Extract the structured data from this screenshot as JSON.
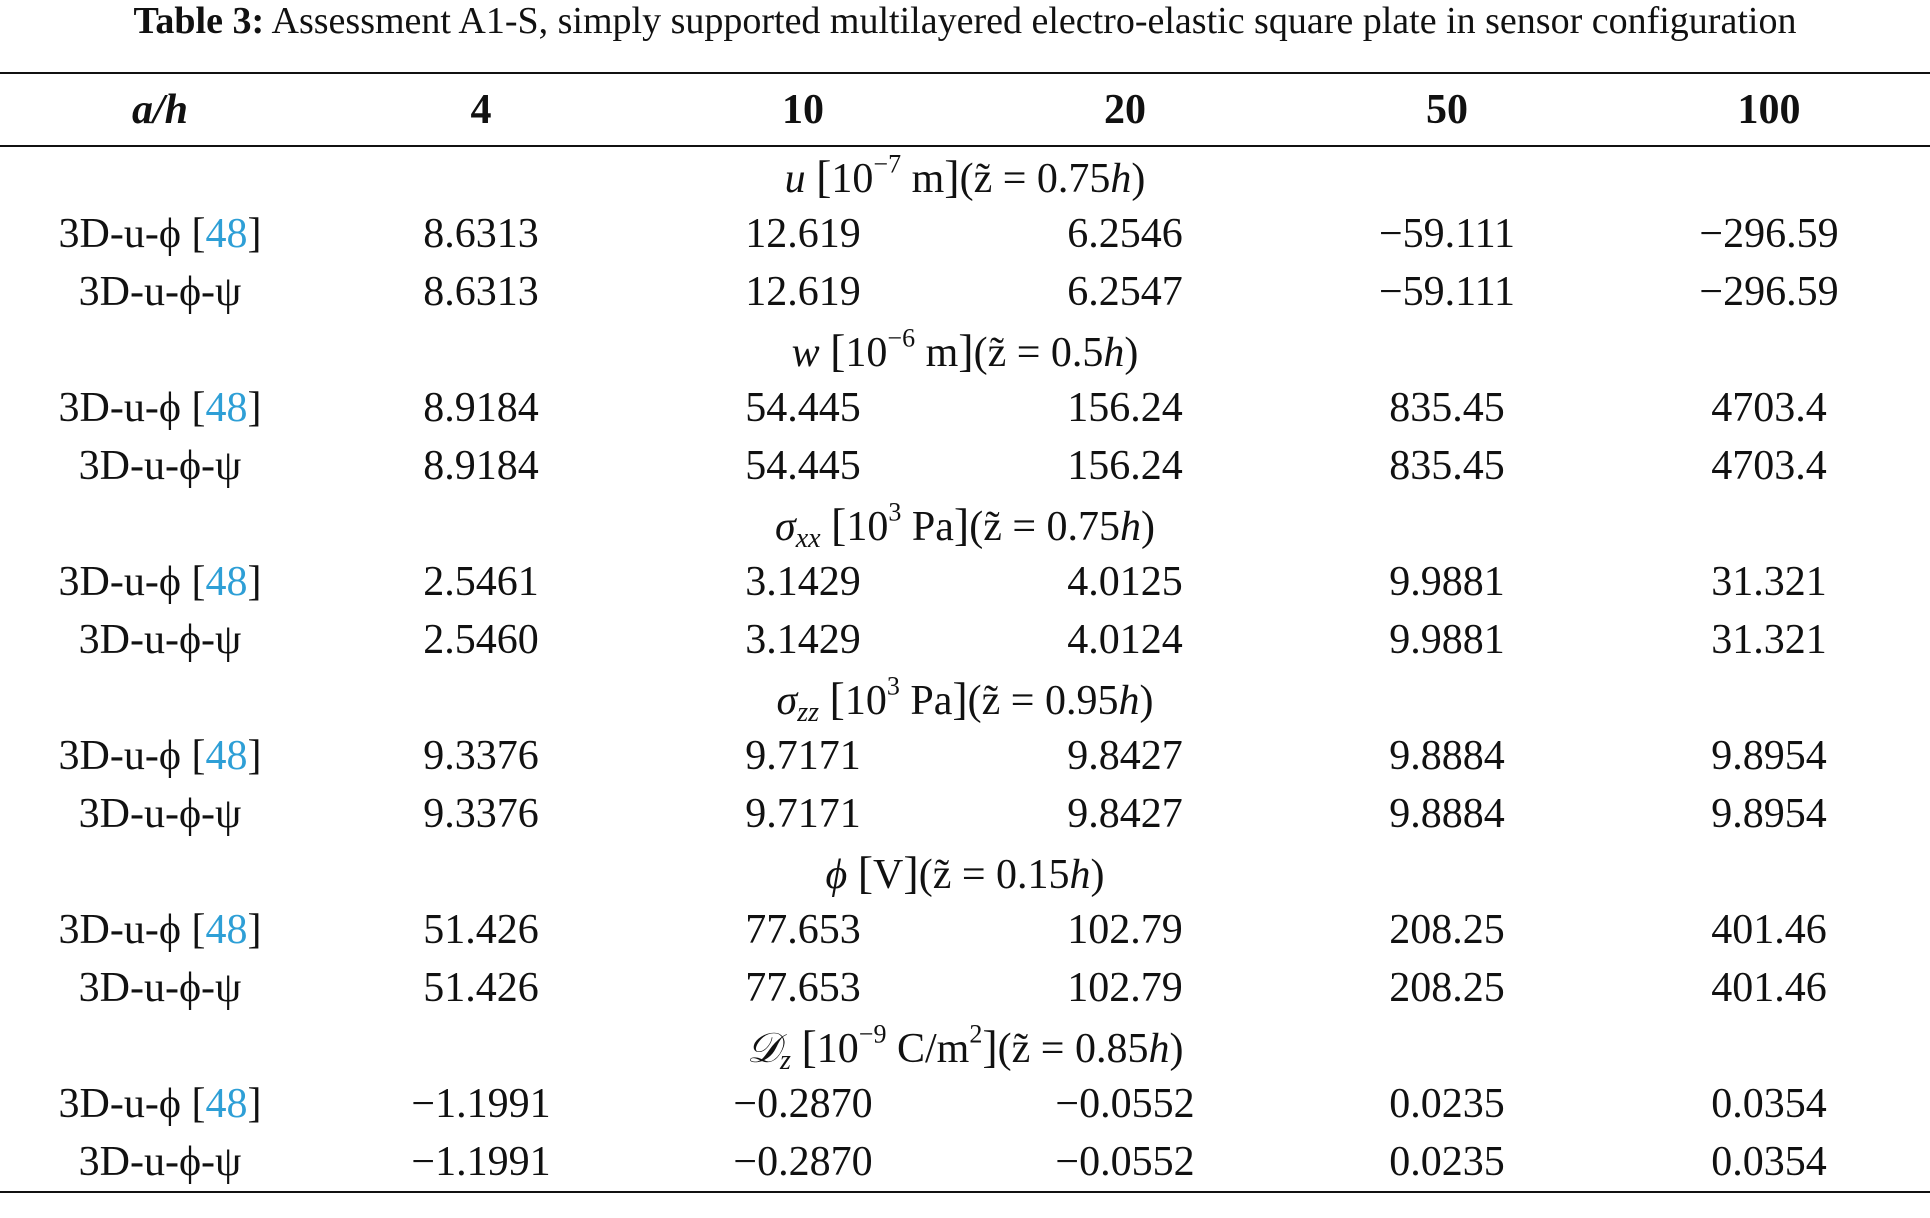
{
  "caption": {
    "label": "Table 3:",
    "text": " Assessment A1-S, simply supported multilayered electro-elastic square plate in sensor configuration"
  },
  "table": {
    "header": [
      "a/h",
      "4",
      "10",
      "20",
      "50",
      "100"
    ],
    "row_labels": {
      "ref_prefix": "3D-u-ϕ ",
      "ref_open": "[",
      "ref_num": "48",
      "ref_close": "]",
      "psi": "3D-u-ϕ-ψ"
    },
    "sections": [
      {
        "sym": "u",
        "sub": "",
        "unit_pre": "10",
        "unit_exp": "−7",
        "unit_post": " m",
        "loc": "(z̃ = 0.75",
        "loc_h": "h",
        "loc_end": ")",
        "rows": [
          [
            "8.6313",
            "12.619",
            "6.2546",
            "−59.111",
            "−296.59"
          ],
          [
            "8.6313",
            "12.619",
            "6.2547",
            "−59.111",
            "−296.59"
          ]
        ]
      },
      {
        "sym": "w",
        "sub": "",
        "unit_pre": "10",
        "unit_exp": "−6",
        "unit_post": " m",
        "loc": "(z̃ = 0.5",
        "loc_h": "h",
        "loc_end": ")",
        "rows": [
          [
            "8.9184",
            "54.445",
            "156.24",
            "835.45",
            "4703.4"
          ],
          [
            "8.9184",
            "54.445",
            "156.24",
            "835.45",
            "4703.4"
          ]
        ]
      },
      {
        "sym": "σ",
        "sub": "xx",
        "unit_pre": "10",
        "unit_exp": "3",
        "unit_post": " Pa",
        "loc": "(z̃ = 0.75",
        "loc_h": "h",
        "loc_end": ")",
        "rows": [
          [
            "2.5461",
            "3.1429",
            "4.0125",
            "9.9881",
            "31.321"
          ],
          [
            "2.5460",
            "3.1429",
            "4.0124",
            "9.9881",
            "31.321"
          ]
        ]
      },
      {
        "sym": "σ",
        "sub": "zz",
        "unit_pre": "10",
        "unit_exp": "3",
        "unit_post": " Pa",
        "loc": "(z̃ = 0.95",
        "loc_h": "h",
        "loc_end": ")",
        "rows": [
          [
            "9.3376",
            "9.7171",
            "9.8427",
            "9.8884",
            "9.8954"
          ],
          [
            "9.3376",
            "9.7171",
            "9.8427",
            "9.8884",
            "9.8954"
          ]
        ]
      },
      {
        "sym": "ϕ",
        "sub": "",
        "unit_pre": "V",
        "unit_exp": "",
        "unit_post": "",
        "loc": "(z̃ = 0.15",
        "loc_h": "h",
        "loc_end": ")",
        "rows": [
          [
            "51.426",
            "77.653",
            "102.79",
            "208.25",
            "401.46"
          ],
          [
            "51.426",
            "77.653",
            "102.79",
            "208.25",
            "401.46"
          ]
        ]
      },
      {
        "sym": "𝒟",
        "sub": "z",
        "unit_pre": "10",
        "unit_exp": "−9",
        "unit_post": " C/m",
        "unit_post_exp": "2",
        "loc": "(z̃ = 0.85",
        "loc_h": "h",
        "loc_end": ")",
        "rows": [
          [
            "−1.1991",
            "−0.2870",
            "−0.0552",
            "0.0235",
            "0.0354"
          ],
          [
            "−1.1991",
            "−0.2870",
            "−0.0552",
            "0.0235",
            "0.0354"
          ]
        ]
      }
    ]
  }
}
